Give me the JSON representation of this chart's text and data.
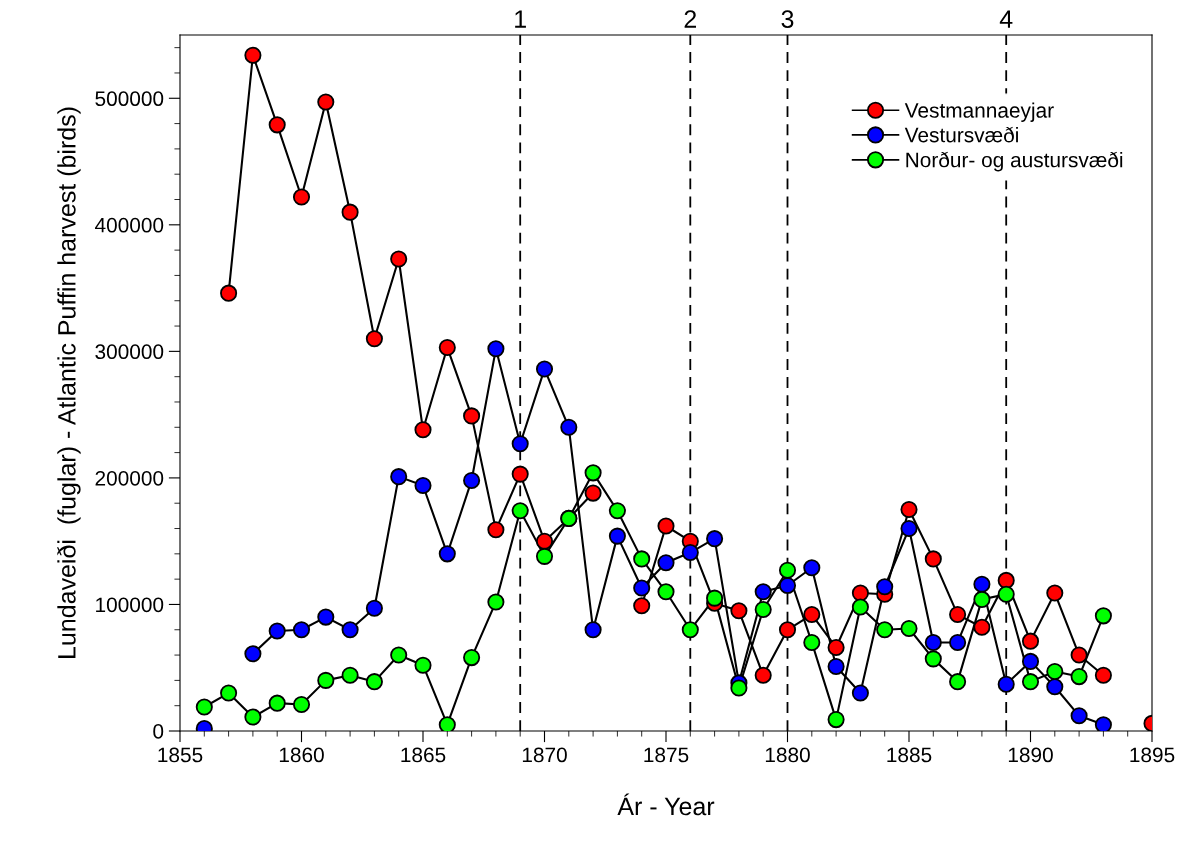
{
  "chart_data": {
    "type": "line",
    "xlabel": "Ár - Year",
    "ylabel": "Lundaveiði  (fuglar) - Atlantic Puffin harvest (birds)",
    "x": [
      1856,
      1857,
      1858,
      1859,
      1860,
      1861,
      1862,
      1863,
      1864,
      1865,
      1866,
      1867,
      1868,
      1869,
      1870,
      1871,
      1872,
      1873,
      1874,
      1875,
      1876,
      1877,
      1878,
      1879,
      1880,
      1881,
      1882,
      1883,
      1884,
      1885,
      1886,
      1887,
      1888,
      1889,
      1890,
      1891,
      1892,
      1893,
      1894,
      1895
    ],
    "series": [
      {
        "name": "Vestmannaeyjar",
        "color": "#ff0000",
        "values": [
          null,
          346000,
          534000,
          479000,
          422000,
          497000,
          410000,
          310000,
          373000,
          238000,
          303000,
          249000,
          159000,
          203000,
          150000,
          168000,
          188000,
          null,
          99000,
          162000,
          150000,
          101000,
          95000,
          44000,
          80000,
          92000,
          66000,
          109000,
          108000,
          175000,
          136000,
          92000,
          82000,
          119000,
          71000,
          109000,
          60000,
          44000,
          null,
          6000
        ]
      },
      {
        "name": "Vestursvæði",
        "color": "#0000ff",
        "values": [
          2000,
          null,
          61000,
          79000,
          80000,
          90000,
          80000,
          97000,
          201000,
          194000,
          140000,
          198000,
          302000,
          227000,
          286000,
          240000,
          80000,
          154000,
          113000,
          133000,
          141000,
          152000,
          38000,
          110000,
          115000,
          129000,
          51000,
          30000,
          114000,
          160000,
          70000,
          70000,
          116000,
          37000,
          55000,
          35000,
          12000,
          5000,
          null,
          null
        ]
      },
      {
        "name": "Norður- og austursvæði",
        "color": "#00ff00",
        "values": [
          19000,
          30000,
          11000,
          22000,
          21000,
          40000,
          44000,
          39000,
          60000,
          52000,
          5000,
          58000,
          102000,
          174000,
          138000,
          168000,
          204000,
          174000,
          136000,
          110000,
          80000,
          105000,
          34000,
          96000,
          127000,
          70000,
          9000,
          98000,
          80000,
          81000,
          57000,
          39000,
          104000,
          108000,
          39000,
          47000,
          43000,
          91000,
          null,
          null
        ]
      }
    ],
    "xlim": [
      1855,
      1895
    ],
    "xticks": [
      1855,
      1860,
      1865,
      1870,
      1875,
      1880,
      1885,
      1890,
      1895
    ],
    "ylim": [
      0,
      550000
    ],
    "yticks": [
      0,
      100000,
      200000,
      300000,
      400000,
      500000
    ],
    "ref_lines": [
      {
        "axis": "x",
        "value": 1869,
        "line_style": "dashed"
      },
      {
        "axis": "x",
        "value": 1876,
        "line_style": "dashed"
      },
      {
        "axis": "x",
        "value": 1880,
        "line_style": "dashed"
      },
      {
        "axis": "x",
        "value": 1889,
        "line_style": "dashed"
      }
    ],
    "annotations": [
      "1",
      "2",
      "3",
      "4"
    ],
    "marker": "circle",
    "line_style": "solid",
    "grid": false,
    "legend": "top right"
  }
}
